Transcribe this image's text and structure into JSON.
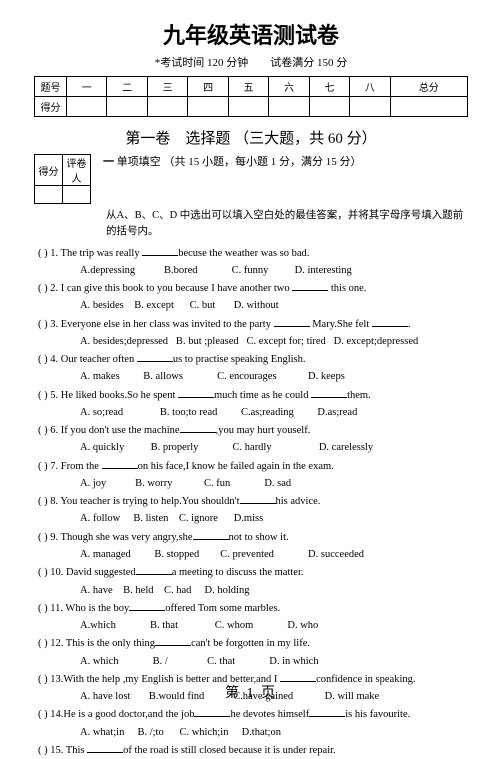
{
  "title": "九年级英语测试卷",
  "subtitle_prefix": "*",
  "subtitle": "考试时间 120 分钟　　试卷满分 150 分",
  "score_table": {
    "row_labels": [
      "题号",
      "得分"
    ],
    "cols": [
      "一",
      "二",
      "三",
      "四",
      "五",
      "六",
      "七",
      "八",
      "总分"
    ]
  },
  "section1_title": "第一卷　选择题 （三大题，共 60 分）",
  "mark_table": [
    "得分",
    "评卷人"
  ],
  "part1_label": "一",
  "part1_text": "单项填空 （共 15 小题，每小题 1 分，满分 15 分）",
  "note": "从A、B、C、D 中选出可以填入空白处的最佳答案，并将其字母序号填入题前的括号内。",
  "questions": [
    {
      "stem": "(   ) 1. The trip was really ______becuse the weather was so bad.",
      "opts": "A.depressing           B.bored             C. funny          D. interesting"
    },
    {
      "stem": "(   ) 2. I can give this book to you because I have another two ________ this one.",
      "opts": "A. besides    B. except      C. but       D. without"
    },
    {
      "stem": "(   ) 3. Everyone else in her class was invited to the party ______ Mary.She felt ______.",
      "opts": "A. besides;depressed   B. but ;pleased   C. except for; tired   D. except;depressed"
    },
    {
      "stem": "(   ) 4. Our teacher often ______us to practise speaking English.",
      "opts": "A. makes         B. allows             C. encourages            D. keeps"
    },
    {
      "stem": "(   ) 5. He liked books.So he spent ______much time as he could ______them.",
      "opts": "A. so;read              B. too;to read         C.as;reading         D.as;read"
    },
    {
      "stem": "(   ) 6. If you don't use the machine______,you may hurt youself.",
      "opts": "A. quickly          B. properly             C. hardly                  D. carelessly"
    },
    {
      "stem": "(   ) 7. From the ______on his face,I know he failed again in the exam.",
      "opts": "A. joy           B. worry            C. fun             D. sad"
    },
    {
      "stem": "(   ) 8. You teacher is trying to help.You shouldn't______his advice.",
      "opts": "A. follow     B. listen    C. ignore      D.miss"
    },
    {
      "stem": "(   ) 9. Though she was very angry,she______not to show it.",
      "opts": "A. managed         B. stopped        C. prevented             D. succeeded"
    },
    {
      "stem": "(   ) 10. David suggested______a meeting to discuss the matter.",
      "opts": "A. have    B. held    C. had     D. holding"
    },
    {
      "stem": "(   ) 11. Who is the boy______offered Tom some marbles.",
      "opts": "A.which             B. that              C. whom             D. who"
    },
    {
      "stem": "(   ) 12. This is the only thing______can't be forgotten in my life.",
      "opts": "A. which             B. /               C. that             D. in which"
    },
    {
      "stem": "(   ) 13.With the help ,my English is better and better,and I ______confidence in speaking.",
      "opts": "A. have lost       B.would find           C.have gained            D. will make"
    },
    {
      "stem": "(   ) 14.He is a good doctor,and the job______he devotes himself______is his favourite.",
      "opts": "A. what;in     B. /;to      C. which;in     D.that;on"
    },
    {
      "stem": "(   ) 15. This ______of the road is still closed because it is under repair.",
      "opts": ""
    }
  ],
  "footer": "第 1 页"
}
